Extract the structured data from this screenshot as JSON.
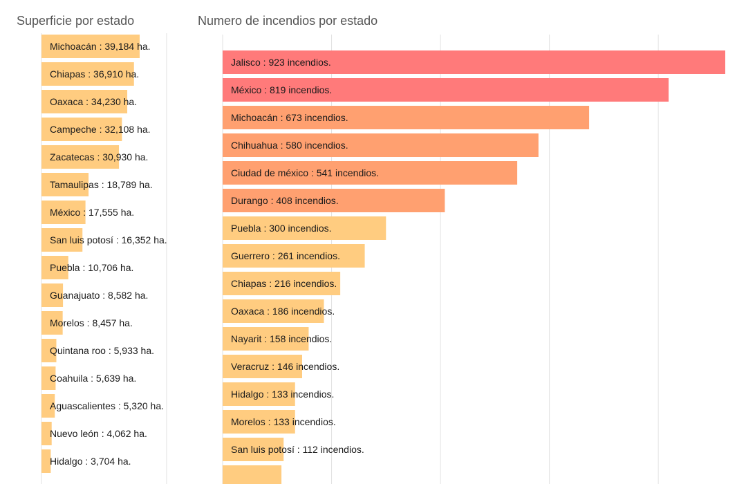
{
  "chart_data": [
    {
      "type": "bar",
      "orientation": "horizontal",
      "title": "Superficie por estado",
      "unit": "ha.",
      "colors": {
        "bar": "#ffcc80"
      },
      "grid": true,
      "categories": [
        "Michoacán",
        "Chiapas",
        "Oaxaca",
        "Campeche",
        "Zacatecas",
        "Tamaulipas",
        "México",
        "San luis potosí",
        "Puebla",
        "Guanajuato",
        "Morelos",
        "Quintana roo",
        "Coahuila",
        "Aguascalientes",
        "Nuevo león",
        "Hidalgo"
      ],
      "values": [
        39184,
        36910,
        34230,
        32108,
        30930,
        18789,
        17555,
        16352,
        10706,
        8582,
        8457,
        5933,
        5639,
        5320,
        4062,
        3704
      ],
      "labels": [
        "Michoacán : 39,184 ha.",
        "Chiapas : 36,910 ha.",
        "Oaxaca : 34,230 ha.",
        "Campeche : 32,108 ha.",
        "Zacatecas : 30,930 ha.",
        "Tamaulipas : 18,789 ha.",
        "México : 17,555 ha.",
        "San luis potosí : 16,352 ha.",
        "Puebla : 10,706 ha.",
        "Guanajuato : 8,582 ha.",
        "Morelos : 8,457 ha.",
        "Quintana roo : 5,933 ha.",
        "Coahuila : 5,639 ha.",
        "Aguascalientes : 5,320 ha.",
        "Nuevo león : 4,062 ha.",
        "Hidalgo : 3,704 ha."
      ]
    },
    {
      "type": "bar",
      "orientation": "horizontal",
      "title": "Numero de incendios por estado",
      "unit": "incendios.",
      "colors": {
        "high": "#ff7a7a",
        "mid": "#ffa070",
        "low": "#ffcc80"
      },
      "grid": true,
      "categories": [
        "Jalisco",
        "México",
        "Michoacán",
        "Chihuahua",
        "Ciudad de méxico",
        "Durango",
        "Puebla",
        "Guerrero",
        "Chiapas",
        "Oaxaca",
        "Nayarit",
        "Veracruz",
        "Hidalgo",
        "Morelos",
        "San luis potosí"
      ],
      "values": [
        923,
        819,
        673,
        580,
        541,
        408,
        300,
        261,
        216,
        186,
        158,
        146,
        133,
        133,
        112
      ],
      "labels": [
        "Jalisco : 923 incendios.",
        "México : 819 incendios.",
        "Michoacán : 673 incendios.",
        "Chihuahua : 580 incendios.",
        "Ciudad de méxico : 541 incendios.",
        "Durango : 408 incendios.",
        "Puebla : 300 incendios.",
        "Guerrero : 261 incendios.",
        "Chiapas : 216 incendios.",
        "Oaxaca : 186 incendios.",
        "Nayarit : 158 incendios.",
        "Veracruz : 146 incendios.",
        "Hidalgo : 133 incendios.",
        "Morelos : 133 incendios.",
        "San luis potosí : 112 incendios."
      ],
      "partially_visible_next_value": 108
    }
  ]
}
